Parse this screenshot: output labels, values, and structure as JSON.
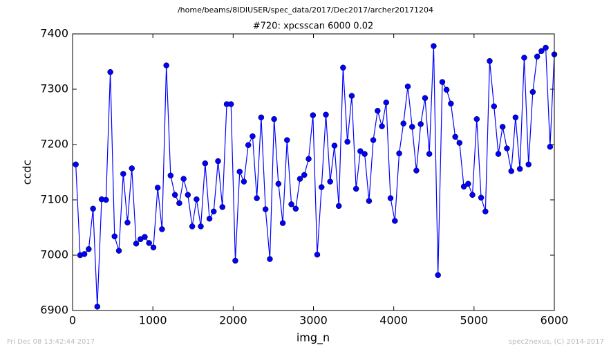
{
  "chart_data": {
    "type": "line",
    "suptitle": "/home/beams/8IDIUSER/spec_data/2017/Dec2017/archer20171204",
    "title": "#720: xpcsscan 6000 0.02",
    "xlabel": "img_n",
    "ylabel": "ccdc",
    "footer_left": "Fri Dec 08 13:42:44 2017",
    "footer_right": "spec2nexus, (C) 2014-2017",
    "xlim": [
      0,
      6000
    ],
    "xticks": [
      0,
      1000,
      2000,
      3000,
      4000,
      5000,
      6000
    ],
    "ylim": [
      6900,
      7400
    ],
    "yticks": [
      6900,
      7000,
      7100,
      7200,
      7300,
      7400
    ],
    "x": [
      40,
      94,
      147,
      201,
      255,
      308,
      362,
      416,
      470,
      523,
      577,
      631,
      684,
      738,
      792,
      846,
      899,
      953,
      1007,
      1060,
      1114,
      1168,
      1221,
      1275,
      1329,
      1383,
      1436,
      1490,
      1544,
      1597,
      1651,
      1705,
      1758,
      1812,
      1866,
      1920,
      1973,
      2027,
      2081,
      2134,
      2188,
      2242,
      2295,
      2349,
      2403,
      2457,
      2510,
      2564,
      2618,
      2671,
      2725,
      2779,
      2832,
      2886,
      2940,
      2994,
      3047,
      3101,
      3155,
      3208,
      3262,
      3316,
      3369,
      3423,
      3477,
      3531,
      3584,
      3638,
      3692,
      3745,
      3799,
      3853,
      3906,
      3960,
      4014,
      4068,
      4121,
      4175,
      4229,
      4282,
      4336,
      4390,
      4443,
      4497,
      4551,
      4605,
      4658,
      4712,
      4766,
      4819,
      4873,
      4927,
      4980,
      5034,
      5088,
      5142,
      5195,
      5249,
      5303,
      5356,
      5410,
      5464,
      5517,
      5571,
      5625,
      5679,
      5732,
      5786,
      5840,
      5893,
      5947,
      6000
    ],
    "series": [
      {
        "color": "#0000ff",
        "values": [
          7164,
          7000,
          7002,
          7011,
          7084,
          6907,
          7101,
          7100,
          7331,
          7034,
          7008,
          7147,
          7059,
          7157,
          7021,
          7029,
          7033,
          7022,
          7014,
          7122,
          7047,
          7343,
          7144,
          7109,
          7094,
          7138,
          7109,
          7052,
          7101,
          7052,
          7166,
          7066,
          7079,
          7170,
          7087,
          7273,
          7273,
          6990,
          7151,
          7133,
          7199,
          7215,
          7103,
          7249,
          7083,
          6993,
          7246,
          7129,
          7058,
          7208,
          7092,
          7084,
          7138,
          7145,
          7174,
          7253,
          7001,
          7123,
          7254,
          7133,
          7198,
          7089,
          7339,
          7205,
          7288,
          7120,
          7188,
          7183,
          7098,
          7208,
          7261,
          7233,
          7276,
          7103,
          7062,
          7184,
          7238,
          7305,
          7232,
          7153,
          7237,
          7284,
          7183,
          7378,
          6964,
          7313,
          7299,
          7274,
          7214,
          7203,
          7124,
          7129,
          7109,
          7246,
          7104,
          7079,
          7351,
          7269,
          7183,
          7232,
          7193,
          7152,
          7249,
          7156,
          7357,
          7164,
          7295,
          7359,
          7369,
          7375,
          7196,
          7363
        ]
      }
    ]
  }
}
